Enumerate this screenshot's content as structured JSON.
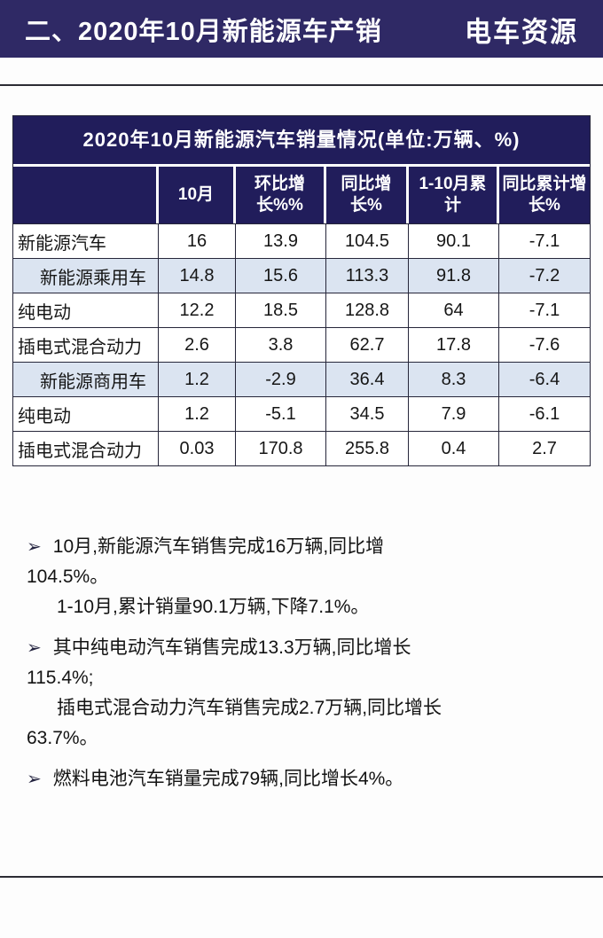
{
  "header": {
    "title": "二、2020年10月新能源车产销",
    "logo": "电车资源"
  },
  "table": {
    "title": "2020年10月新能源汽车销量情况(单位:万辆、%)",
    "columns": [
      "",
      "10月",
      "环比增长%%",
      "同比增长%",
      "1-10月累计",
      "同比累计增长%"
    ],
    "rows": [
      {
        "label": "新能源汽车",
        "values": [
          "16",
          "13.9",
          "104.5",
          "90.1",
          "-7.1"
        ]
      },
      {
        "label": "新能源乘用车",
        "values": [
          "14.8",
          "15.6",
          "113.3",
          "91.8",
          "-7.2"
        ]
      },
      {
        "label": "纯电动",
        "values": [
          "12.2",
          "18.5",
          "128.8",
          "64",
          "-7.1"
        ]
      },
      {
        "label": "插电式混合动力",
        "values": [
          "2.6",
          "3.8",
          "62.7",
          "17.8",
          "-7.6"
        ]
      },
      {
        "label": "新能源商用车",
        "values": [
          "1.2",
          "-2.9",
          "36.4",
          "8.3",
          "-6.4"
        ]
      },
      {
        "label": "纯电动",
        "values": [
          "1.2",
          "-5.1",
          "34.5",
          "7.9",
          "-6.1"
        ]
      },
      {
        "label": "插电式混合动力",
        "values": [
          "0.03",
          "170.8",
          "255.8",
          "0.4",
          "2.7"
        ]
      }
    ]
  },
  "bullet_char": "➢",
  "bullets": [
    {
      "line1": "10月,新能源汽车销售完成16万辆,同比增",
      "line2": "104.5%。",
      "line3": "1-10月,累计销量90.1万辆,下降7.1%。"
    },
    {
      "line1": "其中纯电动汽车销售完成13.3万辆,同比增长",
      "line2": "115.4%;",
      "line3": "插电式混合动力汽车销售完成2.7万辆,同比增长",
      "line4": "63.7%。"
    },
    {
      "line1": "燃料电池汽车销量完成79辆,同比增长4%。"
    }
  ],
  "colors": {
    "topbar_navy": "#2f2965",
    "table_navy": "#211d5b",
    "shaded_row": "#dbe4f1",
    "rule": "#2c2c34"
  }
}
